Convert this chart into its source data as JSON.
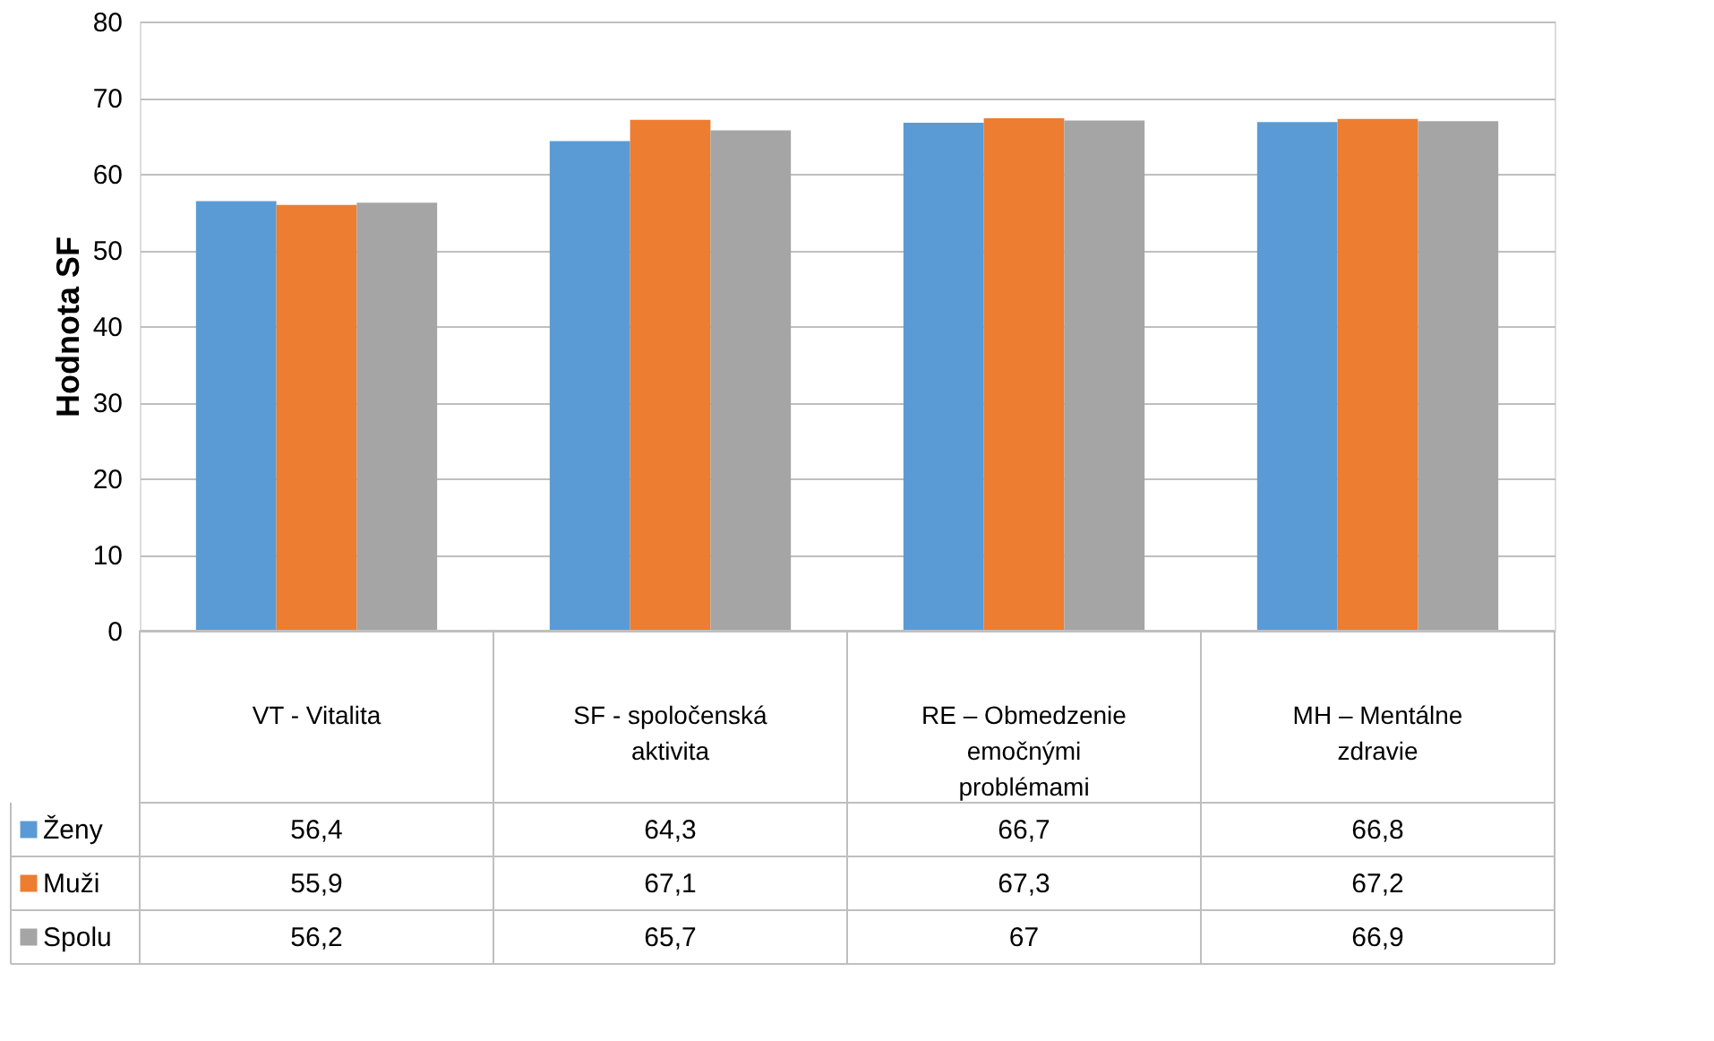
{
  "chart_data": {
    "type": "bar",
    "ylabel": "Hodnota SF",
    "categories": [
      "VT - Vitalita",
      "SF - spoločenská aktivita",
      "RE – Obmedzenie emočnými problémami",
      "MH – Mentálne zdravie"
    ],
    "series": [
      {
        "name": "Ženy",
        "color": "#5b9bd5",
        "values": [
          56.4,
          64.3,
          66.7,
          66.8
        ],
        "value_labels": [
          "56,4",
          "64,3",
          "66,7",
          "66,8"
        ]
      },
      {
        "name": "Muži",
        "color": "#ed7d31",
        "values": [
          55.9,
          67.1,
          67.3,
          67.2
        ],
        "value_labels": [
          "55,9",
          "67,1",
          "67,3",
          "67,2"
        ]
      },
      {
        "name": "Spolu",
        "color": "#a5a5a5",
        "values": [
          56.2,
          65.7,
          67,
          66.9
        ],
        "value_labels": [
          "56,2",
          "65,7",
          "67",
          "66,9"
        ]
      }
    ],
    "ylim": [
      0,
      80
    ],
    "yticks": [
      0,
      10,
      20,
      30,
      40,
      50,
      60,
      70,
      80
    ],
    "grid": "y",
    "legend": "bottom left"
  }
}
